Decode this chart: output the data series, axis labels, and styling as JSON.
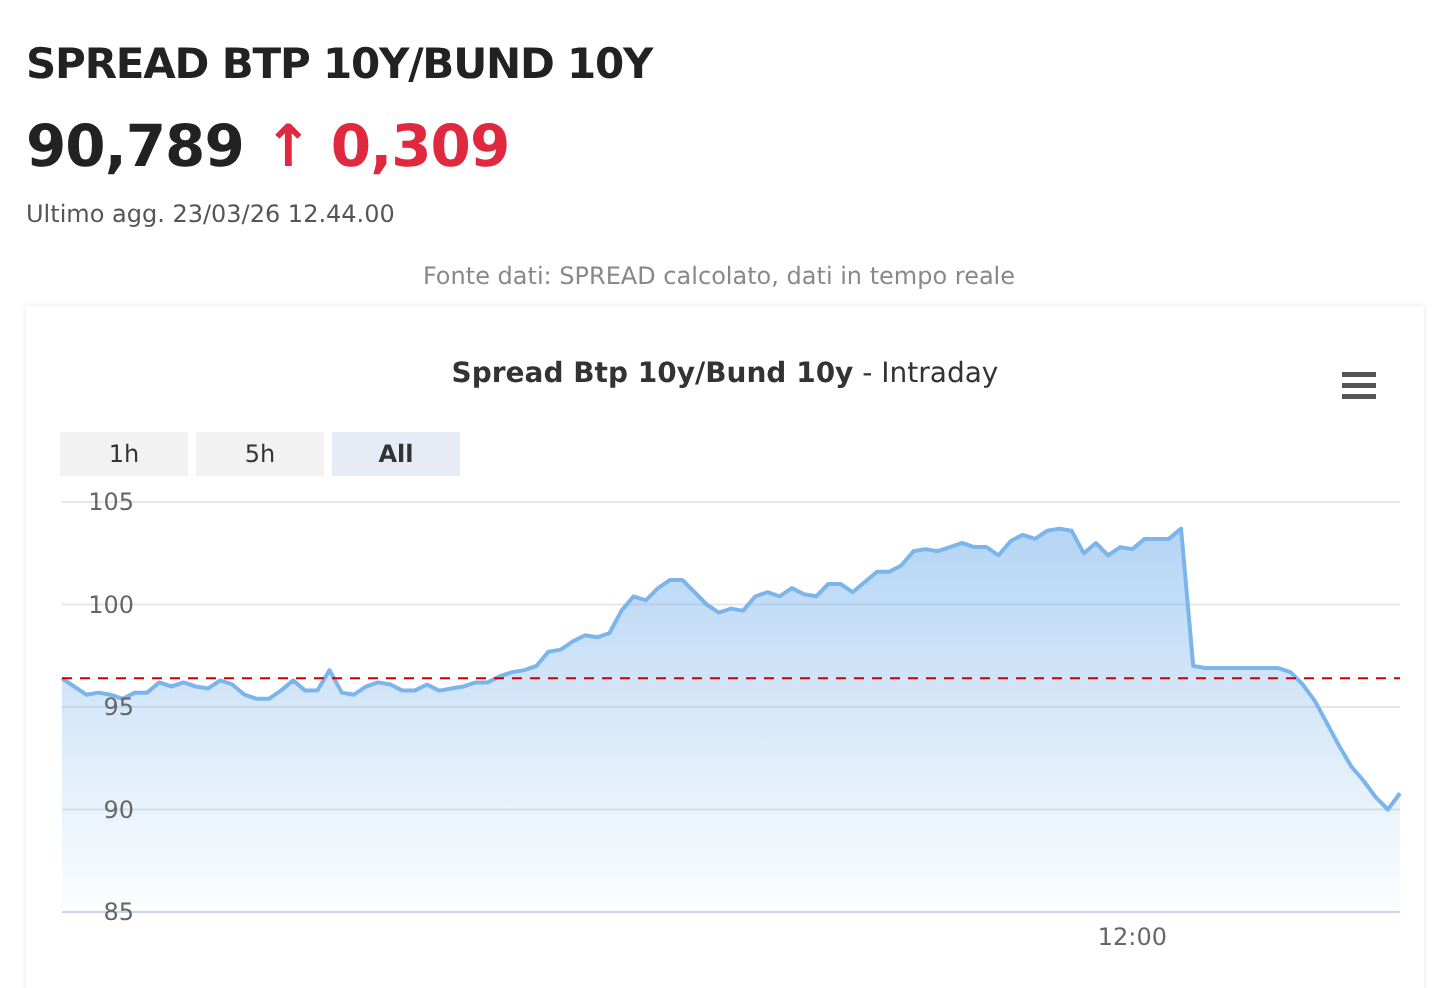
{
  "chart_data": {
    "type": "area",
    "title": "SPREAD BTP 10Y/BUND 10Y",
    "subtitle": "Spread Btp 10y/Bund 10y",
    "annotations": [
      "90,789",
      "↑ 0,309",
      "Ultimo agg. 23/03/26 12.44.00",
      "Fonte dati: SPREAD calcolato, dati in tempo reale",
      "- Intraday",
      "1h",
      "5h",
      "All"
    ],
    "categories": [
      null,
      null,
      null,
      null,
      null,
      null,
      null,
      null,
      null,
      null,
      null,
      null,
      null,
      null,
      null,
      null,
      null,
      null,
      null,
      null,
      null,
      null,
      null,
      null,
      null,
      null,
      null,
      null,
      null,
      null,
      null,
      null,
      null,
      null,
      null,
      null,
      null,
      null,
      null,
      null,
      null,
      null,
      null,
      null,
      null,
      null,
      null,
      null,
      null,
      null,
      null,
      null,
      null,
      null,
      null,
      null,
      null,
      null,
      null,
      null,
      null,
      null,
      null,
      null,
      null,
      null,
      null,
      null,
      null,
      null,
      null,
      null,
      null,
      null,
      null,
      null,
      null,
      null,
      null,
      null,
      null,
      null,
      null,
      null,
      null,
      null,
      null,
      null,
      "12:00",
      null,
      null,
      null,
      null,
      null,
      null,
      null,
      null,
      null,
      null,
      null,
      null,
      null,
      null,
      null,
      null,
      null,
      null,
      null,
      null,
      null,
      null
    ],
    "series": [
      {
        "color": "#7cb5ec",
        "values": [
          96.4,
          96.0,
          95.6,
          95.7,
          95.6,
          95.4,
          95.7,
          95.7,
          96.2,
          96.0,
          96.2,
          96.0,
          95.9,
          96.3,
          96.1,
          95.6,
          95.4,
          95.4,
          95.8,
          96.3,
          95.8,
          95.8,
          96.8,
          95.7,
          95.6,
          96.0,
          96.2,
          96.1,
          95.8,
          95.8,
          96.1,
          95.8,
          95.9,
          96.0,
          96.2,
          96.2,
          96.5,
          96.7,
          96.8,
          97.0,
          97.7,
          97.8,
          98.2,
          98.5,
          98.4,
          98.6,
          99.7,
          100.4,
          100.2,
          100.8,
          101.2,
          101.2,
          100.6,
          100.0,
          99.6,
          99.8,
          99.7,
          100.4,
          100.6,
          100.4,
          100.8,
          100.5,
          100.4,
          101.0,
          101.0,
          100.6,
          101.1,
          101.6,
          101.6,
          101.9,
          102.6,
          102.7,
          102.6,
          102.8,
          103.0,
          102.8,
          102.8,
          102.4,
          103.1,
          103.4,
          103.2,
          103.6,
          103.7,
          103.6,
          102.5,
          103.0,
          102.4,
          102.8,
          102.7,
          103.2,
          103.2,
          103.2,
          103.7,
          97.0,
          96.9,
          96.9,
          96.9,
          96.9,
          96.9,
          96.9,
          96.9,
          96.7,
          96.1,
          95.3,
          94.2,
          93.1,
          92.1,
          91.4,
          90.6,
          90.0,
          90.789
        ]
      }
    ],
    "ylim": [
      85,
      105
    ],
    "yticks": [
      85,
      90,
      95,
      100,
      105
    ],
    "grid": "y",
    "marker": "none",
    "line_style": "solid",
    "ref_lines": [
      {
        "axis": "y",
        "value": 96.4,
        "color": "#cc0000",
        "line_style": "dashed"
      }
    ]
  }
}
